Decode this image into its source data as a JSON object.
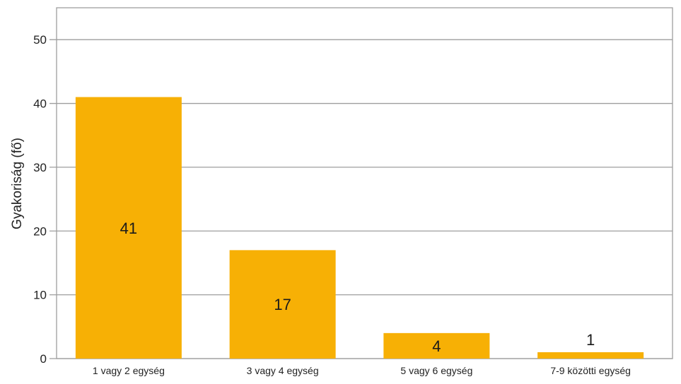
{
  "chart_data": {
    "type": "bar",
    "categories": [
      "1 vagy 2 egység",
      "3 vagy 4 egység",
      "5 vagy 6 egység",
      "7-9 közötti egység"
    ],
    "values": [
      41,
      17,
      4,
      1
    ],
    "data_labels": [
      "41",
      "17",
      "4",
      "1"
    ],
    "title": "",
    "xlabel": "",
    "ylabel": "Gyakoriság (fő)",
    "ylim": [
      0,
      55
    ],
    "yticks": [
      0,
      10,
      20,
      30,
      40,
      50
    ],
    "grid": true,
    "legend": "none",
    "bar_color": "#f7b005"
  }
}
